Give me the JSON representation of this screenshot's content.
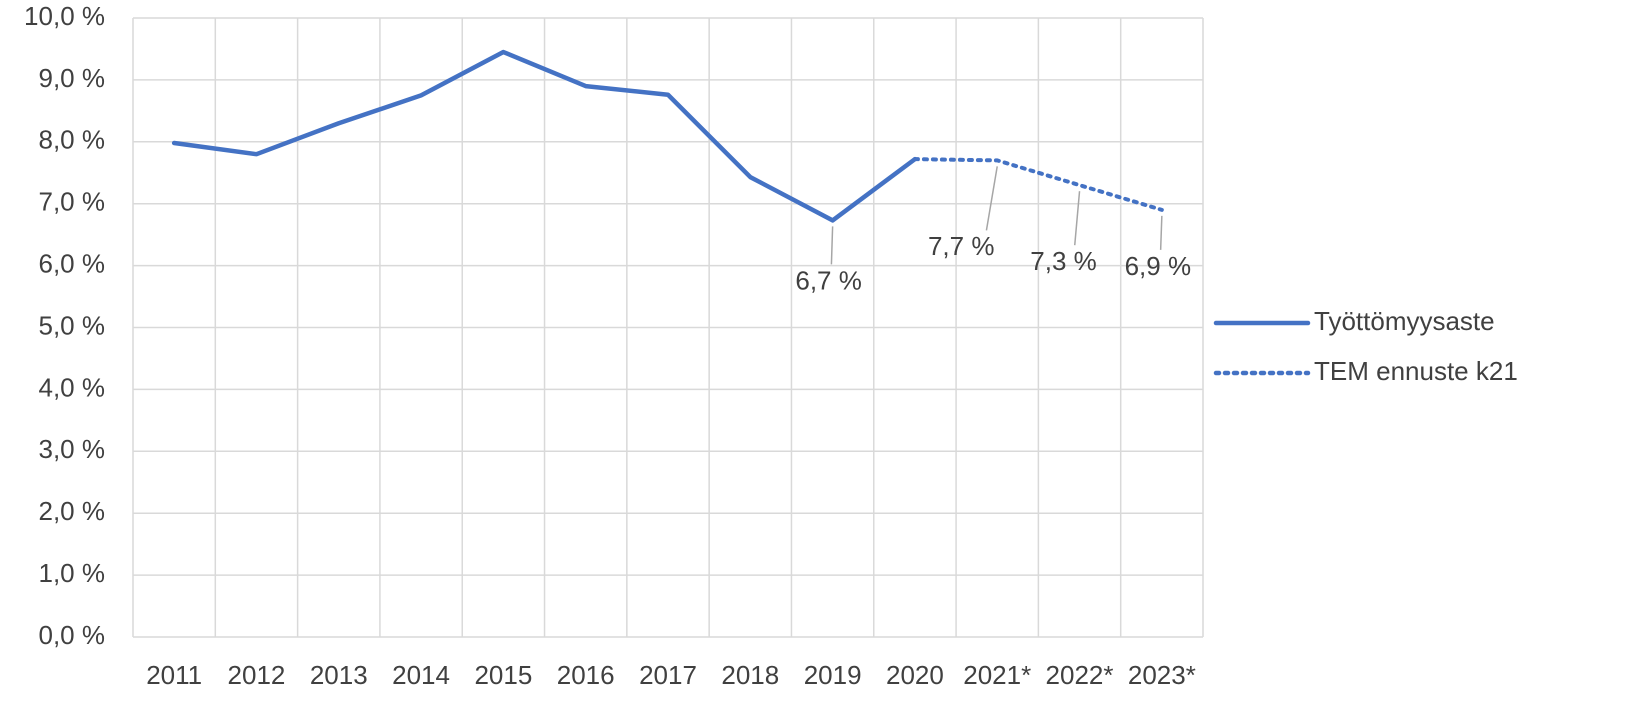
{
  "chart_data": {
    "type": "line",
    "categories": [
      "2011",
      "2012",
      "2013",
      "2014",
      "2015",
      "2016",
      "2017",
      "2018",
      "2019",
      "2020",
      "2021*",
      "2022*",
      "2023*"
    ],
    "series": [
      {
        "name": "Työttömyysaste",
        "color": "#4472c4",
        "dash": "solid",
        "values": [
          7.98,
          7.8,
          8.3,
          8.75,
          9.45,
          8.9,
          8.76,
          7.43,
          6.73,
          7.72,
          null,
          null,
          null
        ],
        "value_labels": [
          null,
          null,
          null,
          null,
          null,
          null,
          null,
          null,
          "6,7 %",
          null,
          null,
          null,
          null
        ]
      },
      {
        "name": "TEM ennuste k21",
        "color": "#4472c4",
        "dash": "dotted",
        "values": [
          null,
          null,
          null,
          null,
          null,
          null,
          null,
          null,
          null,
          7.72,
          7.7,
          7.3,
          6.9
        ],
        "value_labels": [
          null,
          null,
          null,
          null,
          null,
          null,
          null,
          null,
          null,
          null,
          "7,7 %",
          "7,3 %",
          "6,9 %"
        ]
      }
    ],
    "ylim": [
      0,
      10
    ],
    "yticks": [
      {
        "value": 0,
        "label": "0,0 %"
      },
      {
        "value": 1,
        "label": "1,0 %"
      },
      {
        "value": 2,
        "label": "2,0 %"
      },
      {
        "value": 3,
        "label": "3,0 %"
      },
      {
        "value": 4,
        "label": "4,0 %"
      },
      {
        "value": 5,
        "label": "5,0 %"
      },
      {
        "value": 6,
        "label": "6,0 %"
      },
      {
        "value": 7,
        "label": "7,0 %"
      },
      {
        "value": 8,
        "label": "8,0 %"
      },
      {
        "value": 9,
        "label": "9,0 %"
      },
      {
        "value": 10,
        "label": "10,0 %"
      }
    ],
    "grid": true,
    "legend": "right"
  }
}
